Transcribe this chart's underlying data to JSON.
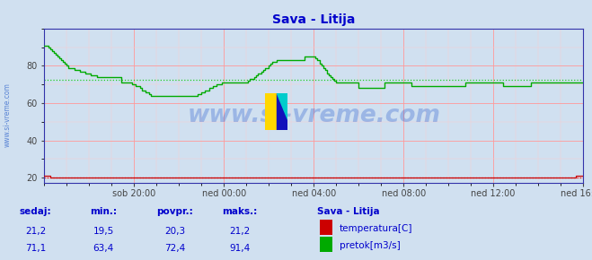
{
  "title": "Sava - Litija",
  "title_color": "#0000cc",
  "bg_color": "#d0e0f0",
  "plot_bg_color": "#d0e0f0",
  "grid_color_major": "#ff9999",
  "grid_color_minor": "#ffcccc",
  "x_labels": [
    "sob 20:00",
    "ned 00:00",
    "ned 04:00",
    "ned 08:00",
    "ned 12:00",
    "ned 16:00"
  ],
  "yticks": [
    20,
    40,
    60,
    80
  ],
  "ymin": 17,
  "ymax": 100,
  "avg_flow": 72.4,
  "avg_temp": 20.3,
  "temp_color": "#cc0000",
  "temp_avg_color": "#dd2222",
  "flow_color": "#00aa00",
  "flow_avg_color": "#22cc22",
  "watermark_text": "www.si-vreme.com",
  "watermark_color": "#2255cc",
  "watermark_alpha": 0.3,
  "left_label_text": "www.si-vreme.com",
  "left_label_color": "#3366cc",
  "stats_headers": [
    "sedaj:",
    "min.:",
    "povpr.:",
    "maks.:"
  ],
  "stats_temp": [
    "21,2",
    "19,5",
    "20,3",
    "21,2"
  ],
  "stats_flow": [
    "71,1",
    "63,4",
    "72,4",
    "91,4"
  ],
  "legend_title": "Sava - Litija",
  "legend_items": [
    "temperatura[C]",
    "pretok[m3/s]"
  ],
  "legend_colors": [
    "#cc0000",
    "#00aa00"
  ],
  "stat_color": "#0000cc",
  "border_color": "#3333aa"
}
